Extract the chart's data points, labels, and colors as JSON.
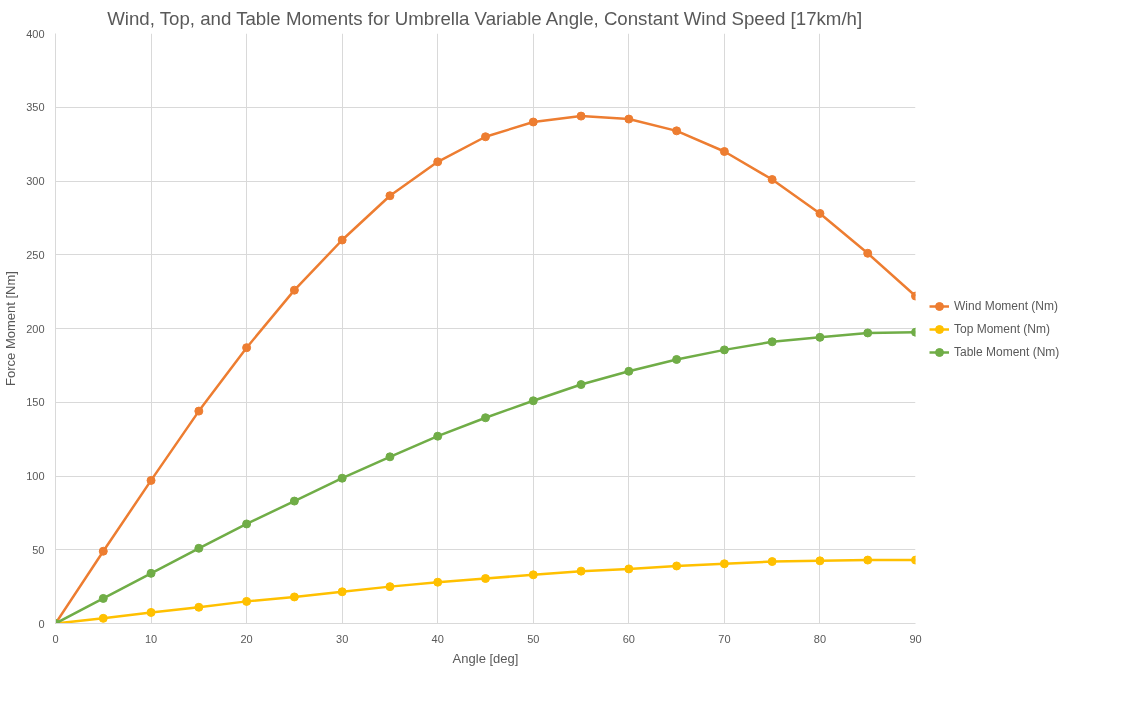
{
  "chart_data": {
    "type": "line",
    "title": "Wind, Top, and Table Moments for Umbrella Variable Angle, Constant Wind Speed [17km/h]",
    "xlabel": "Angle [deg]",
    "ylabel": "Force Moment [Nm]",
    "x": [
      0,
      5,
      10,
      15,
      20,
      25,
      30,
      35,
      40,
      45,
      50,
      55,
      60,
      65,
      70,
      75,
      80,
      85,
      90
    ],
    "series": [
      {
        "name": "Wind Moment (Nm)",
        "color": "#ed7d31",
        "values": [
          0,
          49,
          97,
          144,
          187,
          226,
          260,
          290,
          313,
          330,
          340,
          344,
          342,
          334,
          320,
          301,
          278,
          251,
          222
        ]
      },
      {
        "name": "Top Moment (Nm)",
        "color": "#ffc000",
        "values": [
          0,
          3.5,
          7.5,
          11,
          15,
          18,
          21.5,
          25,
          28,
          30.5,
          33,
          35.5,
          37,
          39,
          40.5,
          42,
          42.5,
          43,
          43
        ]
      },
      {
        "name": "Table Moment (Nm)",
        "color": "#70ad47",
        "values": [
          0,
          17,
          34,
          51,
          67.5,
          83,
          98.5,
          113,
          127,
          139.5,
          151,
          162,
          171,
          179,
          185.5,
          191,
          194,
          197,
          197.5
        ]
      }
    ],
    "xlim": [
      0,
      90
    ],
    "xticks": [
      0,
      10,
      20,
      30,
      40,
      50,
      60,
      70,
      80,
      90
    ],
    "ylim": [
      0,
      400
    ],
    "yticks": [
      0,
      50,
      100,
      150,
      200,
      250,
      300,
      350,
      400
    ],
    "grid": true,
    "legend": "right",
    "marker": "circle",
    "line_style": "solid"
  }
}
